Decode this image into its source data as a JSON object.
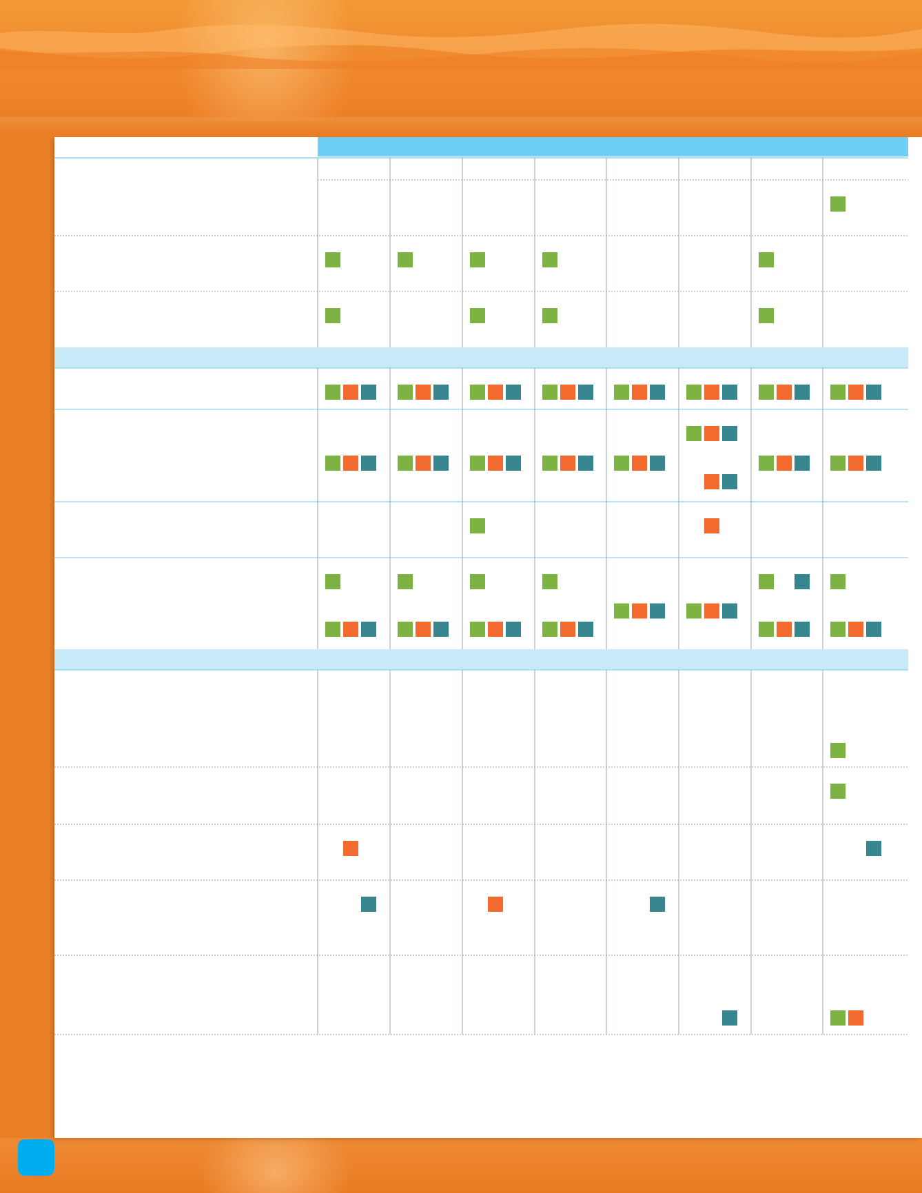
{
  "colors": {
    "page_background": "#ea8026",
    "header_bar": "#6dcff6",
    "section_band": "#c8e9f8",
    "marker_green": "#7cb342",
    "marker_orange": "#f26a2e",
    "marker_teal": "#37868f",
    "page_tab": "#00aeef"
  },
  "table": {
    "column_count": 8,
    "column_headers": [
      "",
      "",
      "",
      "",
      "",
      "",
      "",
      ""
    ],
    "section_headers": [
      "",
      ""
    ],
    "row_labels": [
      "",
      "",
      "",
      "",
      "",
      "",
      "",
      "",
      "",
      "",
      "",
      "",
      ""
    ],
    "marker_legend": [
      "green",
      "orange",
      "teal"
    ],
    "marks": [
      {
        "row": 0,
        "col": 7,
        "slot": 0,
        "colors": [
          "G"
        ]
      },
      {
        "row": 1,
        "col": 0,
        "slot": 0,
        "colors": [
          "G"
        ]
      },
      {
        "row": 1,
        "col": 1,
        "slot": 0,
        "colors": [
          "G"
        ]
      },
      {
        "row": 1,
        "col": 2,
        "slot": 0,
        "colors": [
          "G"
        ]
      },
      {
        "row": 1,
        "col": 3,
        "slot": 0,
        "colors": [
          "G"
        ]
      },
      {
        "row": 1,
        "col": 6,
        "slot": 0,
        "colors": [
          "G"
        ]
      },
      {
        "row": 2,
        "col": 0,
        "slot": 0,
        "colors": [
          "G"
        ]
      },
      {
        "row": 2,
        "col": 2,
        "slot": 0,
        "colors": [
          "G"
        ]
      },
      {
        "row": 2,
        "col": 3,
        "slot": 0,
        "colors": [
          "G"
        ]
      },
      {
        "row": 2,
        "col": 6,
        "slot": 0,
        "colors": [
          "G"
        ]
      },
      {
        "row": 3,
        "col": 0,
        "slot": 0,
        "colors": [
          "G",
          "O",
          "T"
        ]
      },
      {
        "row": 3,
        "col": 1,
        "slot": 0,
        "colors": [
          "G",
          "O",
          "T"
        ]
      },
      {
        "row": 3,
        "col": 2,
        "slot": 0,
        "colors": [
          "G",
          "O",
          "T"
        ]
      },
      {
        "row": 3,
        "col": 3,
        "slot": 0,
        "colors": [
          "G",
          "O",
          "T"
        ]
      },
      {
        "row": 3,
        "col": 4,
        "slot": 0,
        "colors": [
          "G",
          "O",
          "T"
        ]
      },
      {
        "row": 3,
        "col": 5,
        "slot": 0,
        "colors": [
          "G",
          "O",
          "T"
        ]
      },
      {
        "row": 3,
        "col": 6,
        "slot": 0,
        "colors": [
          "G",
          "O",
          "T"
        ]
      },
      {
        "row": 3,
        "col": 7,
        "slot": 0,
        "colors": [
          "G",
          "O",
          "T"
        ]
      },
      {
        "row": 4,
        "col": 0,
        "slot": 1,
        "colors": [
          "G",
          "O",
          "T"
        ]
      },
      {
        "row": 4,
        "col": 1,
        "slot": 1,
        "colors": [
          "G",
          "O",
          "T"
        ]
      },
      {
        "row": 4,
        "col": 2,
        "slot": 1,
        "colors": [
          "G",
          "O",
          "T"
        ]
      },
      {
        "row": 4,
        "col": 3,
        "slot": 1,
        "colors": [
          "G",
          "O",
          "T"
        ]
      },
      {
        "row": 4,
        "col": 4,
        "slot": 1,
        "colors": [
          "G",
          "O",
          "T"
        ]
      },
      {
        "row": 4,
        "col": 5,
        "slot": 0,
        "colors": [
          "G",
          "O",
          "T"
        ]
      },
      {
        "row": 4,
        "col": 5,
        "slot": 2,
        "colors": [
          "",
          "O",
          "T"
        ]
      },
      {
        "row": 4,
        "col": 6,
        "slot": 1,
        "colors": [
          "G",
          "O",
          "T"
        ]
      },
      {
        "row": 4,
        "col": 7,
        "slot": 1,
        "colors": [
          "G",
          "O",
          "T"
        ]
      },
      {
        "row": 5,
        "col": 2,
        "slot": 0,
        "colors": [
          "G"
        ]
      },
      {
        "row": 5,
        "col": 5,
        "slot": 0,
        "colors": [
          "",
          "O"
        ]
      },
      {
        "row": 6,
        "col": 0,
        "slot": 0,
        "colors": [
          "G"
        ]
      },
      {
        "row": 6,
        "col": 0,
        "slot": 2,
        "colors": [
          "G",
          "O",
          "T"
        ]
      },
      {
        "row": 6,
        "col": 1,
        "slot": 0,
        "colors": [
          "G"
        ]
      },
      {
        "row": 6,
        "col": 1,
        "slot": 2,
        "colors": [
          "G",
          "O",
          "T"
        ]
      },
      {
        "row": 6,
        "col": 2,
        "slot": 0,
        "colors": [
          "G"
        ]
      },
      {
        "row": 6,
        "col": 2,
        "slot": 2,
        "colors": [
          "G",
          "O",
          "T"
        ]
      },
      {
        "row": 6,
        "col": 3,
        "slot": 0,
        "colors": [
          "G"
        ]
      },
      {
        "row": 6,
        "col": 3,
        "slot": 2,
        "colors": [
          "G",
          "O",
          "T"
        ]
      },
      {
        "row": 6,
        "col": 4,
        "slot": 1,
        "colors": [
          "G",
          "O",
          "T"
        ]
      },
      {
        "row": 6,
        "col": 5,
        "slot": 1,
        "colors": [
          "G",
          "O",
          "T"
        ]
      },
      {
        "row": 6,
        "col": 6,
        "slot": 0,
        "colors": [
          "G",
          "",
          "T"
        ]
      },
      {
        "row": 6,
        "col": 6,
        "slot": 2,
        "colors": [
          "G",
          "O",
          "T"
        ]
      },
      {
        "row": 6,
        "col": 7,
        "slot": 0,
        "colors": [
          "G"
        ]
      },
      {
        "row": 6,
        "col": 7,
        "slot": 2,
        "colors": [
          "G",
          "O",
          "T"
        ]
      },
      {
        "row": 7,
        "col": 7,
        "slot": 3,
        "colors": [
          "G"
        ]
      },
      {
        "row": 8,
        "col": 7,
        "slot": 0,
        "colors": [
          "G"
        ]
      },
      {
        "row": 9,
        "col": 0,
        "slot": 0,
        "colors": [
          "",
          "O"
        ]
      },
      {
        "row": 9,
        "col": 7,
        "slot": 0,
        "colors": [
          "",
          "",
          "T"
        ]
      },
      {
        "row": 10,
        "col": 0,
        "slot": 0,
        "colors": [
          "",
          "",
          "T"
        ]
      },
      {
        "row": 10,
        "col": 2,
        "slot": 0,
        "colors": [
          "",
          "O"
        ]
      },
      {
        "row": 10,
        "col": 4,
        "slot": 0,
        "colors": [
          "",
          "",
          "T"
        ]
      },
      {
        "row": 11,
        "col": 5,
        "slot": 3,
        "colors": [
          "",
          "",
          "T"
        ]
      },
      {
        "row": 11,
        "col": 7,
        "slot": 3,
        "colors": [
          "G",
          "O"
        ]
      }
    ]
  }
}
